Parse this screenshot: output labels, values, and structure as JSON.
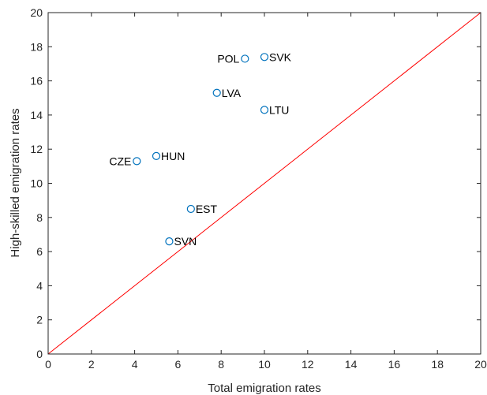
{
  "chart_data": {
    "type": "scatter",
    "title": "",
    "xlabel": "Total emigration rates",
    "ylabel": "High-skilled emigration rates",
    "xlim": [
      0,
      20
    ],
    "ylim": [
      0,
      20
    ],
    "xticks": [
      0,
      2,
      4,
      6,
      8,
      10,
      12,
      14,
      16,
      18,
      20
    ],
    "yticks": [
      0,
      2,
      4,
      6,
      8,
      10,
      12,
      14,
      16,
      18,
      20
    ],
    "grid": false,
    "marker": "open-circle",
    "marker_color": "#0072BD",
    "reference_line": {
      "from": [
        0,
        0
      ],
      "to": [
        20,
        20
      ],
      "color": "#FF0000"
    },
    "points": [
      {
        "label": "POL",
        "x": 9.1,
        "y": 17.3,
        "label_side": "left"
      },
      {
        "label": "SVK",
        "x": 10.0,
        "y": 17.4,
        "label_side": "right"
      },
      {
        "label": "LVA",
        "x": 7.8,
        "y": 15.3,
        "label_side": "right"
      },
      {
        "label": "LTU",
        "x": 10.0,
        "y": 14.3,
        "label_side": "right"
      },
      {
        "label": "CZE",
        "x": 4.1,
        "y": 11.3,
        "label_side": "left"
      },
      {
        "label": "HUN",
        "x": 5.0,
        "y": 11.6,
        "label_side": "right"
      },
      {
        "label": "EST",
        "x": 6.6,
        "y": 8.5,
        "label_side": "right"
      },
      {
        "label": "SVN",
        "x": 5.6,
        "y": 6.6,
        "label_side": "right"
      }
    ]
  }
}
